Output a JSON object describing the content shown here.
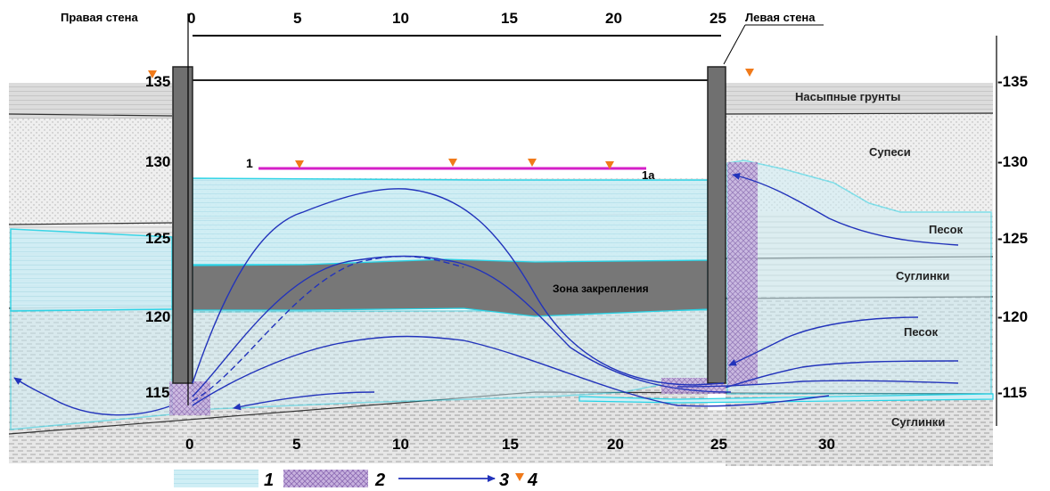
{
  "labels": {
    "right_wall": "Правая стена",
    "left_wall": "Левая стена",
    "fill_soils": "Насыпные грунты",
    "sandy_loam": "Супеси",
    "sand_upper": "Песок",
    "loam_upper": "Суглинки",
    "sand_lower": "Песок",
    "loam_lower": "Суглинки",
    "fixing_zone": "Зона закрепления",
    "section_start": "1",
    "section_end": "1а"
  },
  "top_axis_ticks": [
    "0",
    "5",
    "10",
    "15",
    "20",
    "25"
  ],
  "bottom_axis_ticks": [
    "0",
    "5",
    "10",
    "15",
    "20",
    "25",
    "30"
  ],
  "left_axis_ticks": [
    "135",
    "130",
    "125",
    "120",
    "115"
  ],
  "right_axis_ticks": [
    "-135",
    "-130",
    "-125",
    "-120",
    "-115"
  ],
  "legend": [
    {
      "number": "1",
      "kind": "swatch",
      "meaning_color": "#cfeef5"
    },
    {
      "number": "2",
      "kind": "swatch",
      "meaning_color": "#b79ad2"
    },
    {
      "number": "3",
      "kind": "arrow",
      "meaning_color": "#2233bb"
    },
    {
      "number": "4",
      "kind": "triangle",
      "meaning_color": "#f07a1a"
    }
  ],
  "colors": {
    "grout_blue": "#cfeef5",
    "grout_edge": "#27d3e6",
    "jet_purple": "#b79ad2",
    "wall_grey": "#707070",
    "zone_grey": "#777777",
    "flow_blue": "#2233bb",
    "marker_orange": "#f07a1a",
    "section_magenta": "#d51fc8"
  }
}
